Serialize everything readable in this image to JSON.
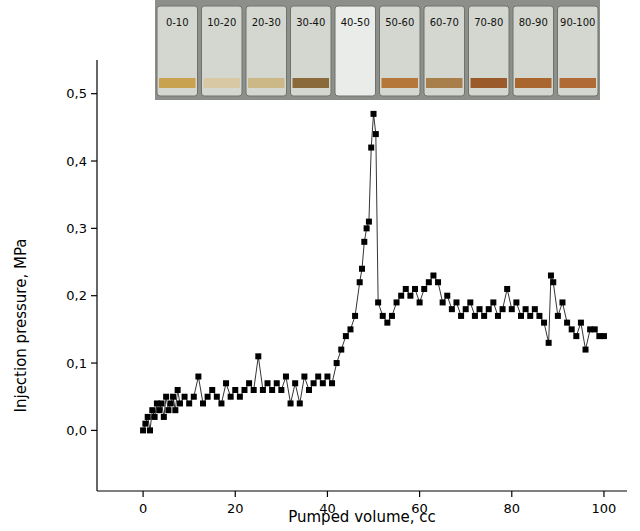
{
  "chart_data": {
    "type": "line",
    "marker": "square",
    "line_style": "solid",
    "color": "#000000",
    "x_label": "Pumped volume, cc",
    "y_label": "Injection pressure, MPa",
    "annotations": [
      "0-10",
      "10-20",
      "20-30",
      "30-40",
      "40-50",
      "50-60",
      "60-70",
      "70-80",
      "80-90",
      "90-100"
    ],
    "xlim": [
      -10,
      105
    ],
    "ylim": [
      -0.09,
      0.55
    ],
    "xticks": [
      0,
      20,
      40,
      60,
      80,
      100
    ],
    "yticks": [
      {
        "value": 0,
        "label": "0,0"
      },
      {
        "value": 0.1,
        "label": "0,1"
      },
      {
        "value": 0.2,
        "label": "0,2"
      },
      {
        "value": 0.3,
        "label": "0,3"
      },
      {
        "value": 0.4,
        "label": "0,4"
      },
      {
        "value": 0.5,
        "label": "0,5"
      }
    ],
    "x": [
      0,
      0.5,
      1,
      1.5,
      2,
      2.5,
      3,
      3.5,
      4,
      4.5,
      5,
      5.5,
      6,
      6.5,
      7,
      7.5,
      8,
      9,
      10,
      11,
      12,
      13,
      14,
      15,
      16,
      17,
      18,
      19,
      20,
      21,
      22,
      23,
      24,
      25,
      26,
      27,
      28,
      29,
      30,
      31,
      32,
      33,
      34,
      35,
      36,
      37,
      38,
      39,
      40,
      41,
      42,
      43,
      44,
      45,
      46,
      47,
      47.5,
      48,
      48.5,
      49,
      49.5,
      50,
      50.5,
      51,
      52,
      53,
      54,
      55,
      56,
      57,
      58,
      59,
      60,
      61,
      62,
      63,
      64,
      65,
      66,
      67,
      68,
      69,
      70,
      71,
      72,
      73,
      74,
      75,
      76,
      77,
      78,
      79,
      80,
      81,
      82,
      83,
      84,
      85,
      86,
      87,
      88,
      88.5,
      89,
      90,
      91,
      92,
      93,
      94,
      95,
      96,
      97,
      98,
      99,
      100
    ],
    "values": [
      0.0,
      0.01,
      0.02,
      0.0,
      0.03,
      0.02,
      0.04,
      0.03,
      0.04,
      0.02,
      0.05,
      0.03,
      0.04,
      0.05,
      0.03,
      0.06,
      0.04,
      0.05,
      0.04,
      0.05,
      0.08,
      0.04,
      0.05,
      0.06,
      0.05,
      0.04,
      0.07,
      0.05,
      0.06,
      0.05,
      0.06,
      0.07,
      0.06,
      0.11,
      0.06,
      0.07,
      0.06,
      0.07,
      0.06,
      0.08,
      0.04,
      0.07,
      0.04,
      0.08,
      0.06,
      0.07,
      0.08,
      0.07,
      0.08,
      0.07,
      0.1,
      0.12,
      0.14,
      0.15,
      0.17,
      0.22,
      0.24,
      0.28,
      0.3,
      0.31,
      0.42,
      0.47,
      0.44,
      0.19,
      0.17,
      0.16,
      0.17,
      0.19,
      0.2,
      0.21,
      0.2,
      0.21,
      0.19,
      0.21,
      0.22,
      0.23,
      0.22,
      0.19,
      0.2,
      0.18,
      0.19,
      0.17,
      0.18,
      0.19,
      0.17,
      0.18,
      0.17,
      0.18,
      0.19,
      0.17,
      0.18,
      0.21,
      0.18,
      0.19,
      0.17,
      0.18,
      0.17,
      0.18,
      0.17,
      0.16,
      0.13,
      0.23,
      0.22,
      0.17,
      0.19,
      0.16,
      0.15,
      0.14,
      0.16,
      0.12,
      0.15,
      0.15,
      0.14,
      0.14
    ]
  }
}
